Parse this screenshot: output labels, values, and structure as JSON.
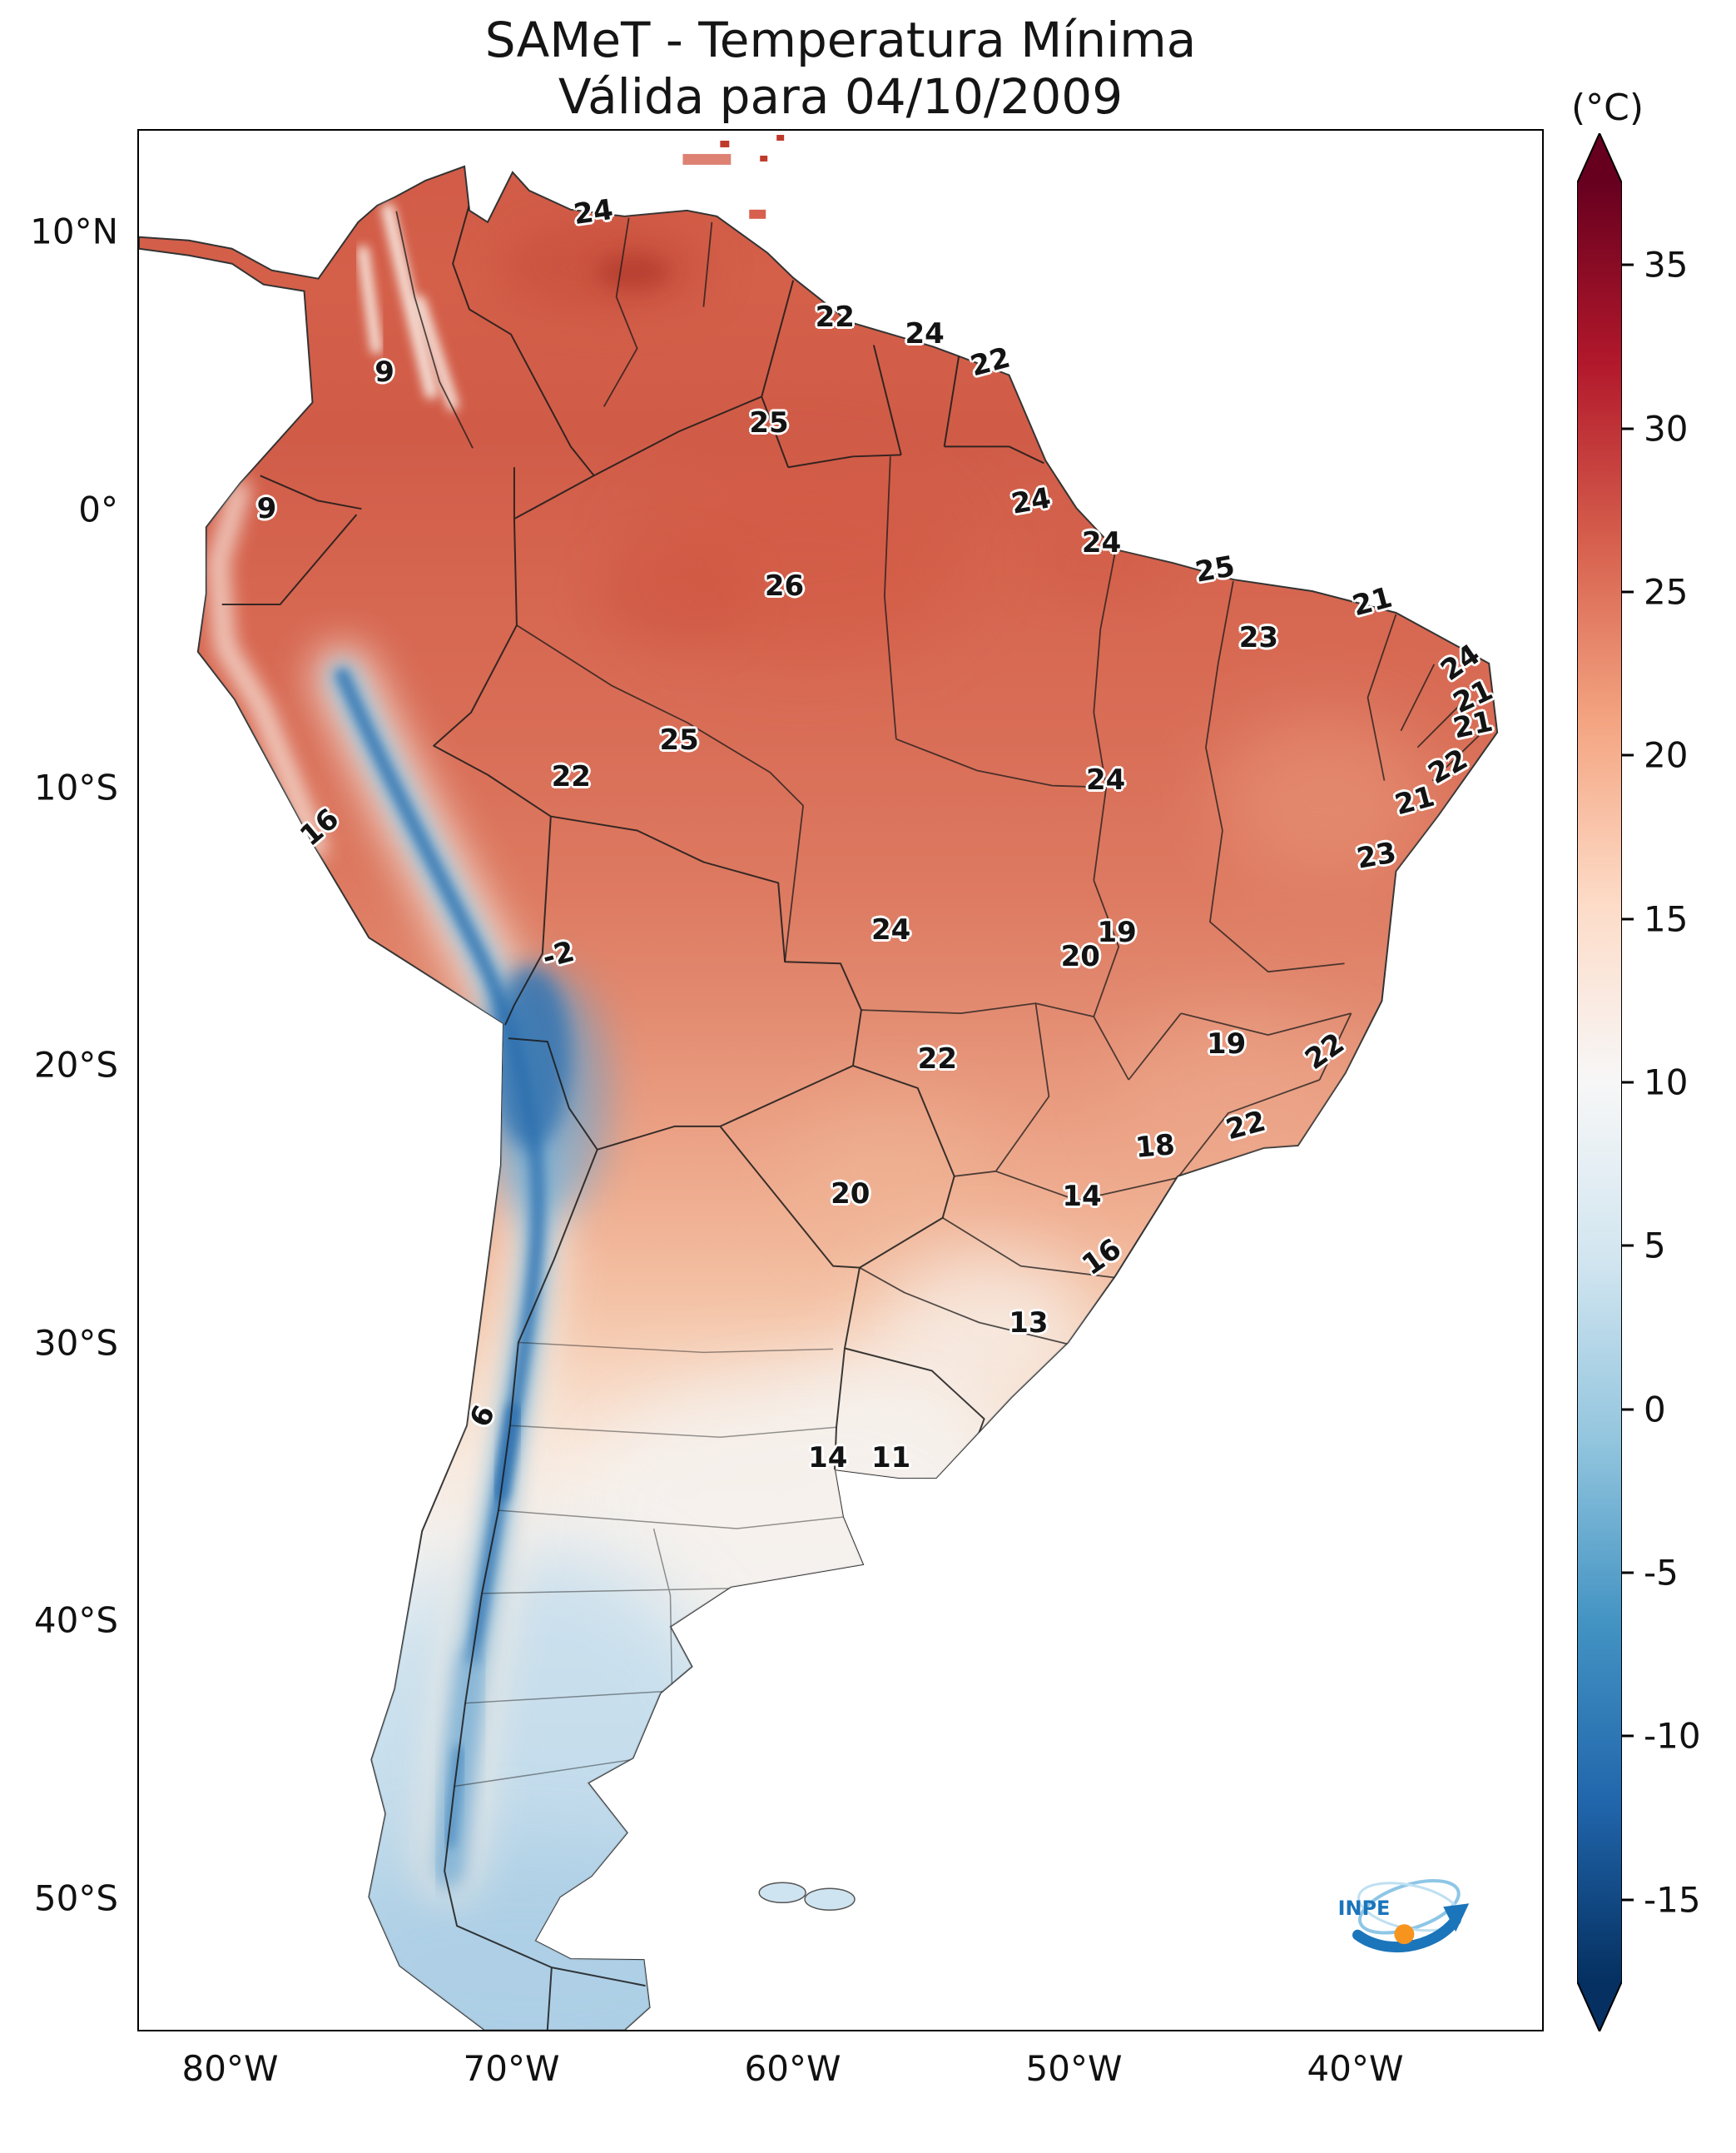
{
  "title": {
    "line1": "SAMeT - Temperatura Mínima",
    "line2": "Válida para 04/10/2009"
  },
  "colorbar": {
    "unit": "(°C)",
    "vmin": -17.5,
    "vmax": 37.5,
    "tick_values": [
      35,
      30,
      25,
      20,
      15,
      10,
      5,
      0,
      -5,
      -10,
      -15
    ],
    "palette_top_to_bottom": [
      "#67001f",
      "#b2182b",
      "#d6604d",
      "#f4a582",
      "#fddbc7",
      "#f7f7f7",
      "#d1e5f0",
      "#92c5de",
      "#4393c3",
      "#2166ac",
      "#053061"
    ]
  },
  "axes": {
    "extent": {
      "west_lon": -83.3,
      "east_lon": -33.3,
      "north_lat": 13.7,
      "south_lat": -54.8
    },
    "lat_ticks": [
      {
        "label": "10°N",
        "value": 10
      },
      {
        "label": "0°",
        "value": 0
      },
      {
        "label": "10°S",
        "value": -10
      },
      {
        "label": "20°S",
        "value": -20
      },
      {
        "label": "30°S",
        "value": -30
      },
      {
        "label": "40°S",
        "value": -40
      },
      {
        "label": "50°S",
        "value": -50
      }
    ],
    "lon_ticks": [
      {
        "label": "80°W",
        "value": -80
      },
      {
        "label": "70°W",
        "value": -70
      },
      {
        "label": "60°W",
        "value": -60
      },
      {
        "label": "50°W",
        "value": -50
      },
      {
        "label": "40°W",
        "value": -40
      }
    ]
  },
  "logo": {
    "text": "INPE"
  },
  "chart_data": {
    "type": "heatmap",
    "title": "SAMeT - Temperatura Mínima",
    "subtitle": "Válida para 04/10/2009",
    "unit": "°C",
    "region": "South America",
    "colorbar_range": [
      -17.5,
      37.5
    ],
    "colorbar_ticks": [
      35,
      30,
      25,
      20,
      15,
      10,
      5,
      0,
      -5,
      -10,
      -15
    ],
    "legend_position": "right",
    "labels": [
      {
        "v": "24",
        "x": 32.4,
        "y": 4.3,
        "r": -8
      },
      {
        "v": "22",
        "x": 49.6,
        "y": 9.8,
        "r": 0
      },
      {
        "v": "24",
        "x": 56.0,
        "y": 10.7,
        "r": 0
      },
      {
        "v": "22",
        "x": 60.7,
        "y": 12.2,
        "r": -15
      },
      {
        "v": "25",
        "x": 44.9,
        "y": 15.4,
        "r": 0
      },
      {
        "v": "9",
        "x": 17.5,
        "y": 12.7,
        "r": 0
      },
      {
        "v": "9",
        "x": 9.1,
        "y": 19.9,
        "r": 0
      },
      {
        "v": "24",
        "x": 63.6,
        "y": 19.5,
        "r": -10
      },
      {
        "v": "24",
        "x": 68.6,
        "y": 21.7,
        "r": 0
      },
      {
        "v": "25",
        "x": 76.7,
        "y": 23.1,
        "r": -10
      },
      {
        "v": "26",
        "x": 46.0,
        "y": 24.0,
        "r": 0
      },
      {
        "v": "21",
        "x": 87.9,
        "y": 24.8,
        "r": -15
      },
      {
        "v": "23",
        "x": 79.8,
        "y": 26.7,
        "r": 0
      },
      {
        "v": "24",
        "x": 94.2,
        "y": 28.0,
        "r": -35
      },
      {
        "v": "21",
        "x": 95.1,
        "y": 29.8,
        "r": -25
      },
      {
        "v": "21",
        "x": 95.1,
        "y": 31.3,
        "r": -12
      },
      {
        "v": "25",
        "x": 38.5,
        "y": 32.1,
        "r": 0
      },
      {
        "v": "22",
        "x": 30.8,
        "y": 34.0,
        "r": 0
      },
      {
        "v": "22",
        "x": 93.3,
        "y": 33.5,
        "r": -30
      },
      {
        "v": "24",
        "x": 68.9,
        "y": 34.2,
        "r": 0
      },
      {
        "v": "21",
        "x": 90.9,
        "y": 35.3,
        "r": -15
      },
      {
        "v": "23",
        "x": 88.2,
        "y": 38.2,
        "r": -10
      },
      {
        "v": "16",
        "x": 12.9,
        "y": 36.7,
        "r": -40
      },
      {
        "v": "-2",
        "x": 29.9,
        "y": 43.4,
        "r": -15
      },
      {
        "v": "24",
        "x": 53.6,
        "y": 42.1,
        "r": 0
      },
      {
        "v": "19",
        "x": 69.7,
        "y": 42.2,
        "r": 0
      },
      {
        "v": "20",
        "x": 67.1,
        "y": 43.5,
        "r": 0
      },
      {
        "v": "19",
        "x": 77.5,
        "y": 48.1,
        "r": 0
      },
      {
        "v": "22",
        "x": 84.5,
        "y": 48.5,
        "r": -35
      },
      {
        "v": "22",
        "x": 56.9,
        "y": 48.9,
        "r": 0
      },
      {
        "v": "22",
        "x": 78.9,
        "y": 52.4,
        "r": -15
      },
      {
        "v": "18",
        "x": 72.4,
        "y": 53.5,
        "r": -5
      },
      {
        "v": "20",
        "x": 50.7,
        "y": 56.0,
        "r": 0
      },
      {
        "v": "14",
        "x": 67.2,
        "y": 56.1,
        "r": 0
      },
      {
        "v": "16",
        "x": 68.6,
        "y": 59.3,
        "r": -35
      },
      {
        "v": "13",
        "x": 63.4,
        "y": 62.8,
        "r": 0
      },
      {
        "v": "6",
        "x": 24.5,
        "y": 67.7,
        "r": -65
      },
      {
        "v": "14",
        "x": 49.1,
        "y": 69.9,
        "r": 0
      },
      {
        "v": "11",
        "x": 53.6,
        "y": 69.9,
        "r": 0
      }
    ]
  }
}
